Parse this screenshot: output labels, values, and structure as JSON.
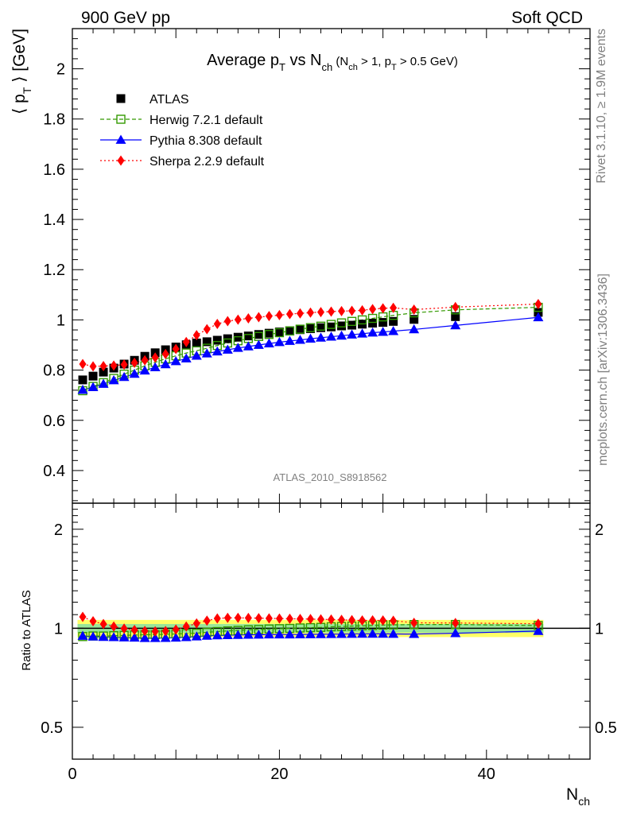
{
  "header": {
    "left": "900 GeV pp",
    "right": "Soft QCD"
  },
  "side": {
    "top": "Rivet 3.1.10, ≥ 1.9M events",
    "bottom": "mcplots.cern.ch [arXiv:1306.3436]"
  },
  "watermark": "ATLAS_2010_S8918562",
  "chart_data": {
    "type": "scatter",
    "title_parts": {
      "a": "Average p",
      "a_sub": "T",
      "b": " vs N",
      "b_sub": "ch",
      "c": " (N",
      "c_sub": "ch",
      "d": " > 1, p",
      "d_sub": "T",
      "e": " > 0.5 GeV)"
    },
    "ylabel_parts": {
      "open": "⟨ p",
      "sub": "T",
      "close": " ⟩  [GeV]"
    },
    "xlabel_parts": {
      "main": "N",
      "sub": "ch"
    },
    "ratio_ylabel": "Ratio to ATLAS",
    "xlim": [
      0,
      50
    ],
    "main_ylim": [
      0.27,
      2.16
    ],
    "main_yticks": [
      0.4,
      0.6,
      0.8,
      1,
      1.2,
      1.4,
      1.6,
      1.8,
      2
    ],
    "main_ytick_labels": [
      "0.4",
      "0.6",
      "0.8",
      "1",
      "1.2",
      "1.4",
      "1.6",
      "1.8",
      "2"
    ],
    "ratio_ylim": [
      0.4,
      2.4
    ],
    "ratio_log": true,
    "ratio_yticks": [
      0.5,
      1,
      2
    ],
    "ratio_ytick_labels": [
      "0.5",
      "1",
      "2"
    ],
    "xticks": [
      0,
      20,
      40
    ],
    "xtick_labels": [
      "0",
      "20",
      "40"
    ],
    "x": [
      1,
      2,
      3,
      4,
      5,
      6,
      7,
      8,
      9,
      10,
      11,
      12,
      13,
      14,
      15,
      16,
      17,
      18,
      19,
      20,
      21,
      22,
      23,
      24,
      25,
      26,
      27,
      28,
      29,
      30,
      31,
      33,
      37,
      45
    ],
    "series": [
      {
        "name": "ATLAS",
        "marker": "square",
        "color": "#000000",
        "line": "none",
        "values": [
          0.761,
          0.776,
          0.792,
          0.808,
          0.824,
          0.839,
          0.855,
          0.869,
          0.881,
          0.892,
          0.901,
          0.908,
          0.913,
          0.919,
          0.925,
          0.931,
          0.936,
          0.942,
          0.947,
          0.952,
          0.957,
          0.961,
          0.965,
          0.969,
          0.972,
          0.976,
          0.979,
          0.983,
          0.987,
          0.99,
          0.994,
          1.002,
          1.013,
          1.03
        ]
      },
      {
        "name": "Herwig 7.2.1 default",
        "marker": "open-square",
        "color": "#339900",
        "line": "dashed",
        "values": [
          0.718,
          0.735,
          0.75,
          0.767,
          0.784,
          0.8,
          0.817,
          0.831,
          0.845,
          0.857,
          0.868,
          0.877,
          0.887,
          0.898,
          0.908,
          0.917,
          0.926,
          0.934,
          0.942,
          0.949,
          0.956,
          0.963,
          0.969,
          0.975,
          0.982,
          0.988,
          0.994,
          1.0,
          1.006,
          1.012,
          1.018,
          1.028,
          1.04,
          1.05
        ]
      },
      {
        "name": "Pythia 8.308 default",
        "marker": "triangle",
        "color": "#0000ff",
        "line": "solid",
        "values": [
          0.721,
          0.732,
          0.745,
          0.759,
          0.772,
          0.785,
          0.798,
          0.811,
          0.823,
          0.835,
          0.846,
          0.857,
          0.866,
          0.874,
          0.881,
          0.888,
          0.894,
          0.9,
          0.906,
          0.911,
          0.916,
          0.92,
          0.925,
          0.929,
          0.933,
          0.937,
          0.941,
          0.945,
          0.949,
          0.952,
          0.955,
          0.962,
          0.978,
          1.01
        ]
      },
      {
        "name": "Sherpa 2.2.9 default",
        "marker": "diamond",
        "color": "#ff0000",
        "line": "dotted",
        "values": [
          0.824,
          0.815,
          0.816,
          0.818,
          0.822,
          0.829,
          0.839,
          0.85,
          0.864,
          0.884,
          0.912,
          0.939,
          0.963,
          0.984,
          0.995,
          1.001,
          1.006,
          1.011,
          1.015,
          1.019,
          1.023,
          1.026,
          1.029,
          1.031,
          1.033,
          1.035,
          1.036,
          1.038,
          1.043,
          1.046,
          1.048,
          1.041,
          1.051,
          1.063
        ]
      }
    ],
    "ratio_band": {
      "inner": 0.03,
      "outer": 0.06,
      "inner_color": "#99e699",
      "outer_color": "#ffff66"
    },
    "legend_position": "top-left",
    "grid": false
  }
}
